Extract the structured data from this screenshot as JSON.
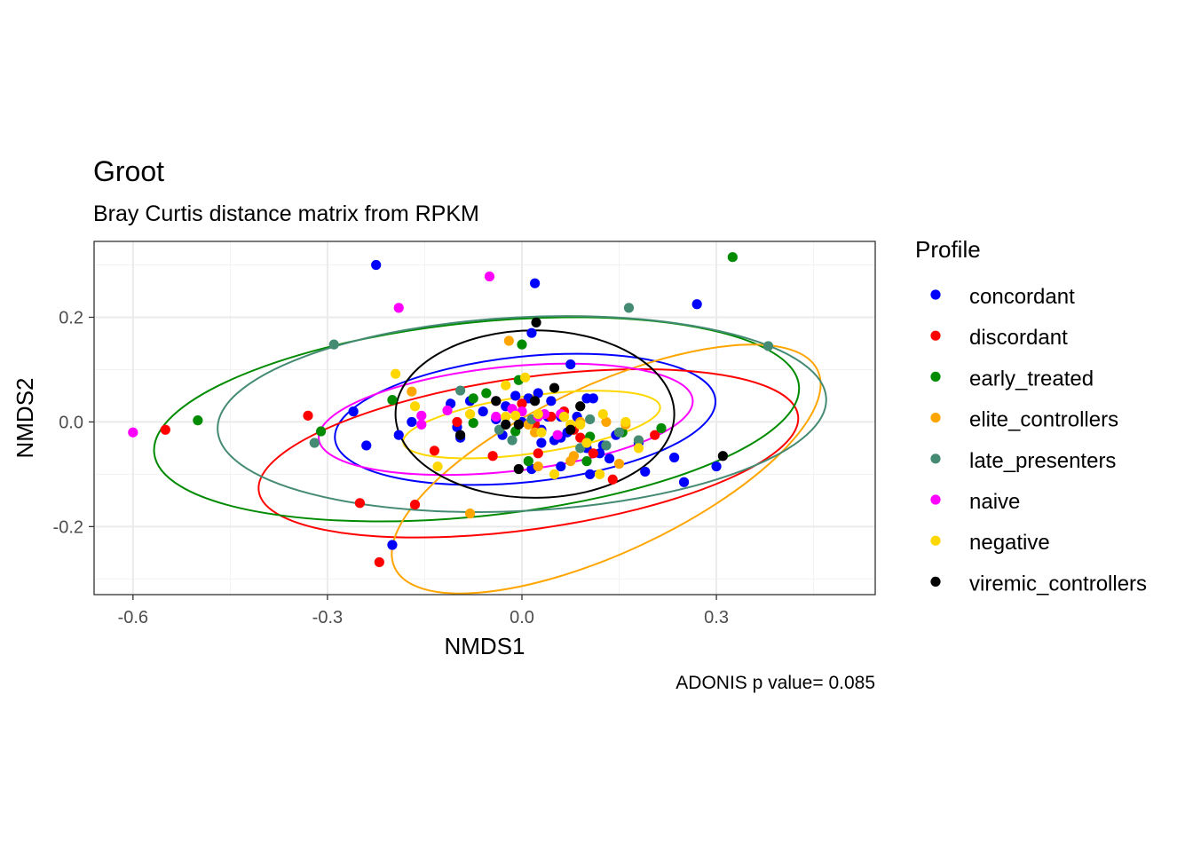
{
  "chart_data": {
    "type": "scatter",
    "title": "Groot",
    "subtitle": "Bray Curtis distance matrix from RPKM",
    "xlabel": "NMDS1",
    "ylabel": "NMDS2",
    "caption": "ADONIS p value= 0.085",
    "xlim": [
      -0.66,
      0.545
    ],
    "ylim": [
      -0.33,
      0.345
    ],
    "x_ticks": [
      -0.6,
      -0.3,
      0.0,
      0.3
    ],
    "x_tick_labels": [
      "-0.6",
      "-0.3",
      "0.0",
      "0.3"
    ],
    "y_ticks": [
      -0.2,
      0.0,
      0.2
    ],
    "y_tick_labels": [
      "-0.2",
      "0.0",
      "0.2"
    ],
    "grid": true,
    "legend": {
      "title": "Profile",
      "position": "right"
    },
    "series": [
      {
        "name": "concordant",
        "color": "#0000FF",
        "ellipse": {
          "cx": 0.005,
          "cy": 0.005,
          "rx": 0.295,
          "ry": 0.12,
          "angle": -6
        },
        "points": [
          [
            -0.225,
            0.3
          ],
          [
            0.02,
            0.265
          ],
          [
            0.27,
            0.225
          ],
          [
            0.015,
            0.17
          ],
          [
            0.075,
            0.11
          ],
          [
            -0.26,
            0.02
          ],
          [
            -0.19,
            -0.025
          ],
          [
            -0.24,
            -0.045
          ],
          [
            -0.11,
            0.035
          ],
          [
            -0.08,
            0.04
          ],
          [
            -0.06,
            0.02
          ],
          [
            -0.1,
            -0.01
          ],
          [
            -0.095,
            -0.03
          ],
          [
            -0.04,
            0.005
          ],
          [
            -0.025,
            0.03
          ],
          [
            -0.01,
            0.05
          ],
          [
            0.01,
            0.045
          ],
          [
            0.025,
            0.055
          ],
          [
            0.045,
            0.04
          ],
          [
            0.06,
            0.01
          ],
          [
            0.1,
            0.045
          ],
          [
            0.11,
            0.045
          ],
          [
            0.085,
            0.01
          ],
          [
            0.03,
            -0.04
          ],
          [
            0.05,
            -0.035
          ],
          [
            0.06,
            -0.03
          ],
          [
            0.1,
            -0.05
          ],
          [
            0.125,
            -0.045
          ],
          [
            0.135,
            -0.07
          ],
          [
            0.145,
            -0.025
          ],
          [
            0.105,
            -0.1
          ],
          [
            0.18,
            -0.04
          ],
          [
            0.19,
            -0.095
          ],
          [
            0.235,
            -0.068
          ],
          [
            0.25,
            -0.115
          ],
          [
            0.3,
            -0.085
          ],
          [
            0.03,
            -0.015
          ],
          [
            0.06,
            -0.085
          ],
          [
            0.015,
            -0.09
          ],
          [
            -0.2,
            -0.235
          ],
          [
            -0.03,
            -0.025
          ],
          [
            -0.17,
            0.0
          ],
          [
            0.12,
            -0.06
          ],
          [
            0.07,
            -0.02
          ],
          [
            0.0,
            0.0
          ],
          [
            0.04,
            0.01
          ]
        ]
      },
      {
        "name": "discordant",
        "color": "#FF0000",
        "ellipse": {
          "cx": 0.01,
          "cy": -0.06,
          "rx": 0.42,
          "ry": 0.145,
          "angle": -8
        },
        "points": [
          [
            -0.55,
            -0.015
          ],
          [
            -0.33,
            0.012
          ],
          [
            -0.25,
            -0.155
          ],
          [
            -0.22,
            -0.268
          ],
          [
            -0.165,
            -0.158
          ],
          [
            -0.135,
            -0.055
          ],
          [
            -0.1,
            0.0
          ],
          [
            -0.045,
            -0.065
          ],
          [
            0.025,
            -0.06
          ],
          [
            0.045,
            0.01
          ],
          [
            0.065,
            0.02
          ],
          [
            0.08,
            -0.015
          ],
          [
            0.09,
            -0.03
          ],
          [
            0.11,
            -0.06
          ],
          [
            0.14,
            -0.11
          ],
          [
            0.205,
            -0.025
          ],
          [
            0.0,
            0.035
          ],
          [
            0.02,
            -0.005
          ]
        ]
      },
      {
        "name": "early_treated",
        "color": "#008B00",
        "ellipse": {
          "cx": -0.07,
          "cy": 0.005,
          "rx": 0.5,
          "ry": 0.185,
          "angle": -6
        },
        "points": [
          [
            0.325,
            0.315
          ],
          [
            0.0,
            0.148
          ],
          [
            -0.5,
            0.003
          ],
          [
            -0.31,
            -0.018
          ],
          [
            -0.2,
            0.042
          ],
          [
            -0.075,
            0.045
          ],
          [
            -0.055,
            0.055
          ],
          [
            -0.075,
            -0.002
          ],
          [
            -0.005,
            0.08
          ],
          [
            -0.01,
            -0.018
          ],
          [
            0.01,
            -0.075
          ],
          [
            0.1,
            -0.075
          ],
          [
            0.105,
            -0.028
          ],
          [
            0.155,
            -0.02
          ],
          [
            0.215,
            -0.012
          ]
        ]
      },
      {
        "name": "elite_controllers",
        "color": "#FFA500",
        "ellipse": {
          "cx": 0.13,
          "cy": -0.09,
          "rx": 0.36,
          "ry": 0.16,
          "angle": -25
        },
        "points": [
          [
            -0.02,
            0.155
          ],
          [
            -0.17,
            0.058
          ],
          [
            0.01,
            -0.005
          ],
          [
            0.02,
            -0.02
          ],
          [
            0.025,
            -0.085
          ],
          [
            0.075,
            -0.075
          ],
          [
            0.09,
            0.0
          ],
          [
            0.13,
            0.0
          ],
          [
            0.15,
            -0.08
          ],
          [
            0.16,
            -0.005
          ],
          [
            0.18,
            -0.035
          ],
          [
            -0.08,
            -0.175
          ],
          [
            0.08,
            -0.065
          ]
        ]
      },
      {
        "name": "late_presenters",
        "color": "#458B74",
        "ellipse": {
          "cx": 0.0,
          "cy": 0.015,
          "rx": 0.47,
          "ry": 0.185,
          "angle": -3
        },
        "points": [
          [
            -0.29,
            0.148
          ],
          [
            0.165,
            0.218
          ],
          [
            0.38,
            0.145
          ],
          [
            -0.32,
            -0.04
          ],
          [
            -0.095,
            0.06
          ],
          [
            -0.015,
            -0.035
          ],
          [
            -0.035,
            -0.015
          ],
          [
            0.015,
            0.005
          ],
          [
            0.09,
            -0.05
          ],
          [
            0.105,
            0.005
          ],
          [
            0.13,
            -0.045
          ],
          [
            0.15,
            -0.02
          ],
          [
            0.18,
            -0.035
          ]
        ]
      },
      {
        "name": "naive",
        "color": "#FF00FF",
        "ellipse": {
          "cx": -0.025,
          "cy": 0.005,
          "rx": 0.29,
          "ry": 0.1,
          "angle": -6
        },
        "points": [
          [
            -0.6,
            -0.02
          ],
          [
            -0.05,
            0.278
          ],
          [
            -0.19,
            0.218
          ],
          [
            -0.155,
            0.012
          ],
          [
            -0.155,
            -0.005
          ],
          [
            -0.115,
            0.022
          ],
          [
            -0.04,
            0.01
          ],
          [
            -0.015,
            0.025
          ],
          [
            0.0,
            0.02
          ],
          [
            0.025,
            0.01
          ],
          [
            0.035,
            0.015
          ],
          [
            0.055,
            -0.025
          ],
          [
            0.06,
            0.015
          ],
          [
            -0.04,
            0.04
          ]
        ]
      },
      {
        "name": "negative",
        "color": "#FFD700",
        "ellipse": {
          "cx": 0.015,
          "cy": -0.005,
          "rx": 0.2,
          "ry": 0.055,
          "angle": -8
        },
        "points": [
          [
            -0.195,
            0.092
          ],
          [
            -0.165,
            0.03
          ],
          [
            -0.13,
            -0.085
          ],
          [
            -0.08,
            0.015
          ],
          [
            -0.025,
            0.07
          ],
          [
            -0.025,
            0.01
          ],
          [
            -0.01,
            0.012
          ],
          [
            0.005,
            0.085
          ],
          [
            0.025,
            0.015
          ],
          [
            0.065,
            0.01
          ],
          [
            0.075,
            -0.005
          ],
          [
            0.09,
            -0.005
          ],
          [
            0.125,
            0.015
          ],
          [
            0.16,
            0.0
          ],
          [
            0.12,
            -0.1
          ],
          [
            0.18,
            -0.05
          ],
          [
            0.05,
            -0.1
          ],
          [
            0.03,
            -0.02
          ],
          [
            0.1,
            -0.04
          ]
        ]
      },
      {
        "name": "viremic_controllers",
        "color": "#000000",
        "ellipse": {
          "cx": 0.02,
          "cy": 0.015,
          "rx": 0.215,
          "ry": 0.16,
          "angle": 0
        },
        "points": [
          [
            0.022,
            0.19
          ],
          [
            -0.095,
            -0.025
          ],
          [
            -0.04,
            0.04
          ],
          [
            -0.025,
            -0.005
          ],
          [
            -0.005,
            -0.005
          ],
          [
            0.02,
            0.04
          ],
          [
            0.05,
            0.065
          ],
          [
            0.09,
            0.03
          ],
          [
            0.075,
            -0.015
          ],
          [
            0.31,
            -0.065
          ],
          [
            -0.005,
            -0.09
          ]
        ]
      }
    ]
  }
}
